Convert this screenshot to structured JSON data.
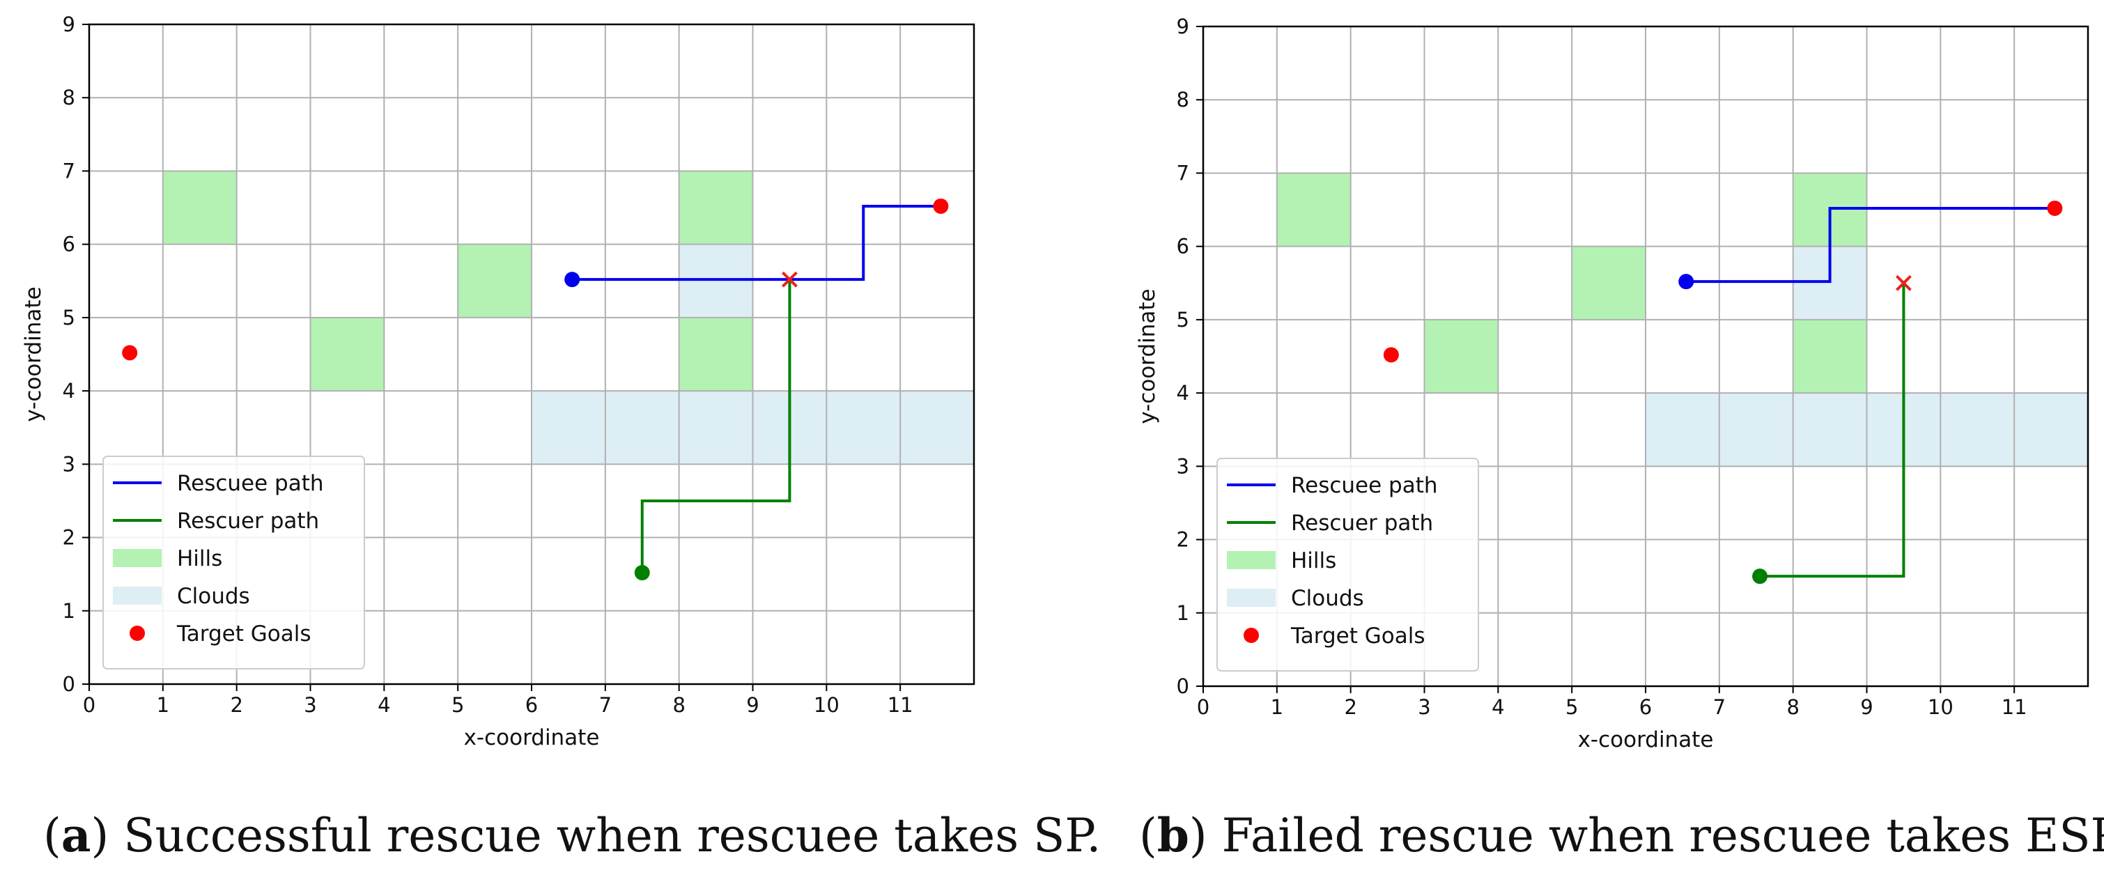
{
  "colors": {
    "hills": "#b3f2b3",
    "clouds": "#ddeef4",
    "rescuee": "#0000ee",
    "rescuer": "#008000",
    "target": "#ff0000",
    "grid": "#b0b0b0"
  },
  "chart_data": [
    {
      "type": "scatter",
      "caption_letter": "a",
      "caption_text": ") Successful rescue when rescuee takes SP.",
      "xlabel": "x-coordinate",
      "ylabel": "y-coordinate",
      "xlim": [
        0,
        12
      ],
      "ylim": [
        0,
        9
      ],
      "xticks": [
        "0",
        "1",
        "2",
        "3",
        "4",
        "5",
        "6",
        "7",
        "8",
        "9",
        "10",
        "11"
      ],
      "yticks": [
        "0",
        "1",
        "2",
        "3",
        "4",
        "5",
        "6",
        "7",
        "8",
        "9"
      ],
      "grid": true,
      "legend_position": "lower-left",
      "legend": [
        "Rescuee path",
        "Rescuer path",
        "Hills",
        "Clouds",
        "Target Goals"
      ],
      "hills": [
        [
          1,
          6
        ],
        [
          3,
          4
        ],
        [
          5,
          5
        ],
        [
          8,
          6
        ],
        [
          8,
          4
        ]
      ],
      "clouds": [
        [
          8,
          5
        ],
        [
          6,
          3
        ],
        [
          7,
          3
        ],
        [
          8,
          3
        ],
        [
          9,
          3
        ],
        [
          10,
          3
        ],
        [
          11,
          3
        ]
      ],
      "rescuee_path": [
        [
          6.55,
          5.52
        ],
        [
          10.5,
          5.52
        ],
        [
          10.5,
          6.52
        ],
        [
          11.55,
          6.52
        ]
      ],
      "rescuer_path": [
        [
          7.5,
          1.52
        ],
        [
          7.5,
          2.5
        ],
        [
          9.5,
          2.5
        ],
        [
          9.5,
          5.52
        ]
      ],
      "rescuee_start": [
        6.55,
        5.52
      ],
      "rescuer_start": [
        7.5,
        1.52
      ],
      "meeting_point": [
        9.5,
        5.52
      ],
      "targets": [
        [
          0.55,
          4.52
        ],
        [
          11.55,
          6.52
        ]
      ]
    },
    {
      "type": "scatter",
      "caption_letter": "b",
      "caption_text": ") Failed rescue when rescuee takes ESP.",
      "xlabel": "x-coordinate",
      "ylabel": "y-coordinate",
      "xlim": [
        0,
        12
      ],
      "ylim": [
        0,
        9
      ],
      "xticks": [
        "0",
        "1",
        "2",
        "3",
        "4",
        "5",
        "6",
        "7",
        "8",
        "9",
        "10",
        "11"
      ],
      "yticks": [
        "0",
        "1",
        "2",
        "3",
        "4",
        "5",
        "6",
        "7",
        "8",
        "9"
      ],
      "grid": true,
      "legend_position": "lower-left",
      "legend": [
        "Rescuee path",
        "Rescuer path",
        "Hills",
        "Clouds",
        "Target Goals"
      ],
      "hills": [
        [
          1,
          6
        ],
        [
          3,
          4
        ],
        [
          5,
          5
        ],
        [
          8,
          6
        ],
        [
          8,
          4
        ]
      ],
      "clouds": [
        [
          8,
          5
        ],
        [
          6,
          3
        ],
        [
          7,
          3
        ],
        [
          8,
          3
        ],
        [
          9,
          3
        ],
        [
          10,
          3
        ],
        [
          11,
          3
        ]
      ],
      "rescuee_path": [
        [
          6.55,
          5.52
        ],
        [
          8.5,
          5.52
        ],
        [
          8.5,
          6.52
        ],
        [
          11.55,
          6.52
        ]
      ],
      "rescuer_path": [
        [
          7.55,
          1.5
        ],
        [
          9.5,
          1.5
        ],
        [
          9.5,
          5.5
        ]
      ],
      "rescuee_start": [
        6.55,
        5.52
      ],
      "rescuer_start": [
        7.55,
        1.5
      ],
      "meeting_point": [
        9.5,
        5.5
      ],
      "targets": [
        [
          2.55,
          4.52
        ],
        [
          11.55,
          6.52
        ]
      ]
    }
  ]
}
